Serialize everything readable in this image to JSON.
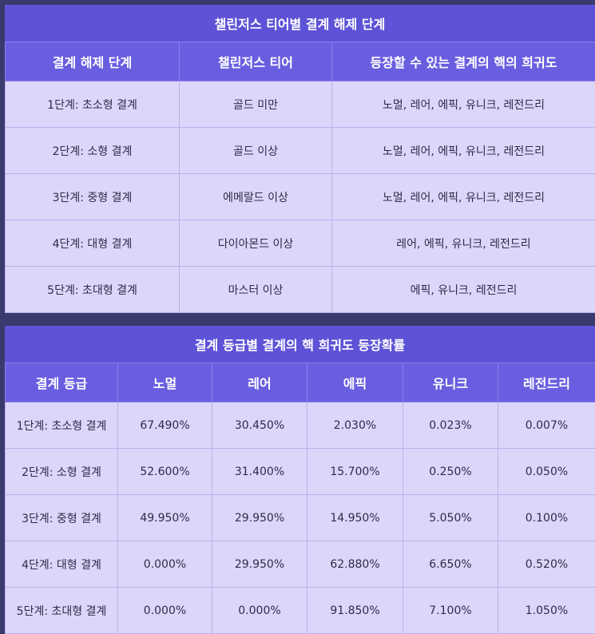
{
  "table1": {
    "title": "챌린저스 티어별 결계 해제 단계",
    "headers": [
      "결계 해제 단계",
      "챌린저스 티어",
      "등장할 수 있는 결계의 핵의 희귀도"
    ],
    "rows": [
      [
        "1단계: 초소형 결계",
        "골드 미만",
        "노멀, 레어, 에픽, 유니크, 레전드리"
      ],
      [
        "2단계: 소형 결계",
        "골드 이상",
        "노멀, 레어, 에픽, 유니크, 레전드리"
      ],
      [
        "3단계: 중형 결계",
        "에메랄드 이상",
        "노멀, 레어, 에픽, 유니크, 레전드리"
      ],
      [
        "4단계: 대형 결계",
        "다이아몬드 이상",
        "레어, 에픽, 유니크, 레전드리"
      ],
      [
        "5단계: 초대형 결계",
        "마스터 이상",
        "에픽, 유니크, 레전드리"
      ]
    ]
  },
  "table2": {
    "title": "결계 등급별 결계의 핵 희귀도 등장확률",
    "headers": [
      "결계 등급",
      "노멀",
      "레어",
      "에픽",
      "유니크",
      "레전드리"
    ],
    "rows": [
      [
        "1단계: 초소형 결계",
        "67.490%",
        "30.450%",
        "2.030%",
        "0.023%",
        "0.007%"
      ],
      [
        "2단계: 소형 결계",
        "52.600%",
        "31.400%",
        "15.700%",
        "0.250%",
        "0.050%"
      ],
      [
        "3단계: 중형 결계",
        "49.950%",
        "29.950%",
        "14.950%",
        "5.050%",
        "0.100%"
      ],
      [
        "4단계: 대형 결계",
        "0.000%",
        "29.950%",
        "62.880%",
        "6.650%",
        "0.520%"
      ],
      [
        "5단계: 초대형 결계",
        "0.000%",
        "0.000%",
        "91.850%",
        "7.100%",
        "1.050%"
      ]
    ]
  }
}
